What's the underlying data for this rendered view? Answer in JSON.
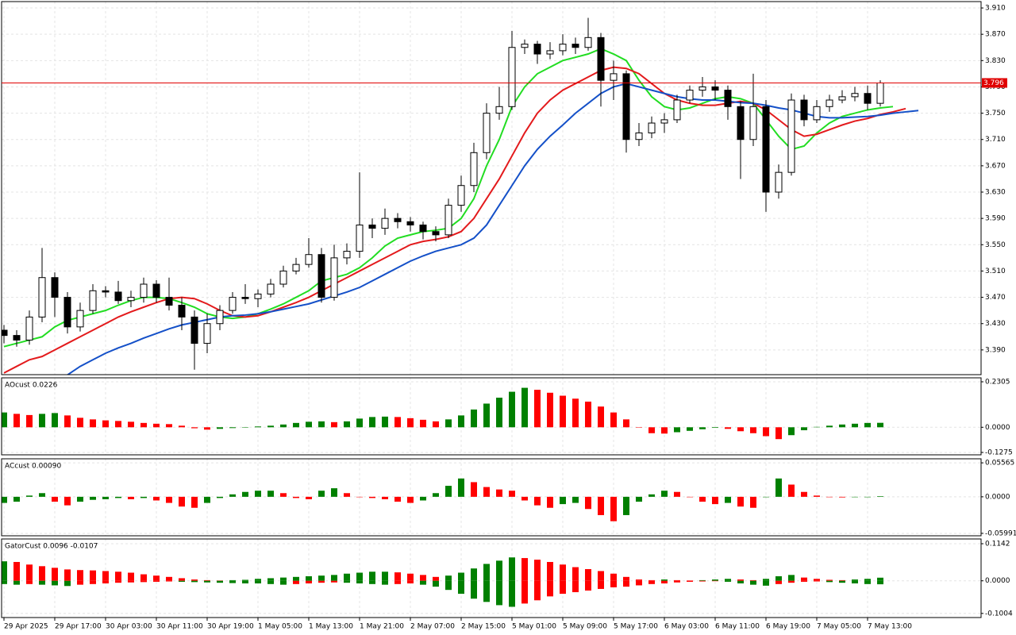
{
  "chart_data": [
    {
      "type": "candlestick",
      "categories": [
        "29 Apr 2025",
        null,
        null,
        null,
        "29 Apr 17:00",
        null,
        null,
        null,
        "30 Apr 03:00",
        null,
        null,
        null,
        "30 Apr 11:00",
        null,
        null,
        null,
        "30 Apr 19:00",
        null,
        null,
        null,
        "1 May 05:00",
        null,
        null,
        null,
        "1 May 13:00",
        null,
        null,
        null,
        "1 May 21:00",
        null,
        null,
        null,
        "2 May 07:00",
        null,
        null,
        null,
        "2 May 15:00",
        null,
        null,
        null,
        "5 May 01:00",
        null,
        null,
        null,
        "5 May 09:00",
        null,
        null,
        null,
        "5 May 17:00",
        null,
        null,
        null,
        "6 May 03:00",
        null,
        null,
        null,
        "6 May 11:00",
        null,
        null,
        null,
        "6 May 19:00",
        null,
        null,
        null,
        "7 May 05:00",
        null,
        null,
        null,
        "7 May 13:00",
        null,
        null,
        null,
        null
      ],
      "open": [
        3.42,
        3.412,
        3.405,
        3.44,
        3.5,
        3.47,
        3.425,
        3.45,
        3.48,
        3.478,
        3.465,
        3.47,
        3.49,
        3.47,
        3.458,
        3.44,
        3.4,
        3.43,
        3.45,
        3.47,
        3.468,
        3.475,
        3.49,
        3.51,
        3.52,
        3.535,
        3.47,
        3.53,
        3.54,
        3.58,
        3.575,
        3.59,
        3.585,
        3.58,
        3.57,
        3.565,
        3.61,
        3.64,
        3.69,
        3.75,
        3.76,
        3.85,
        3.855,
        3.84,
        3.845,
        3.855,
        3.85,
        3.865,
        3.8,
        3.81,
        3.71,
        3.72,
        3.735,
        3.74,
        3.77,
        3.785,
        3.79,
        3.785,
        3.76,
        3.71,
        3.76,
        3.63,
        3.66,
        3.77,
        3.74,
        3.76,
        3.77,
        3.775,
        3.78,
        3.765,
        null,
        null,
        null
      ],
      "high": [
        3.428,
        3.42,
        3.45,
        3.545,
        3.508,
        3.478,
        3.462,
        3.49,
        3.487,
        3.495,
        3.48,
        3.5,
        3.496,
        3.5,
        3.47,
        3.45,
        3.445,
        3.458,
        3.478,
        3.49,
        3.482,
        3.498,
        3.518,
        3.53,
        3.56,
        3.545,
        3.55,
        3.552,
        3.66,
        3.59,
        3.605,
        3.598,
        3.592,
        3.585,
        3.578,
        3.62,
        3.655,
        3.705,
        3.765,
        3.79,
        3.875,
        3.862,
        3.86,
        3.858,
        3.87,
        3.865,
        3.895,
        3.872,
        3.83,
        3.815,
        3.735,
        3.745,
        3.75,
        3.778,
        3.792,
        3.805,
        3.8,
        3.792,
        3.768,
        3.81,
        3.77,
        3.672,
        3.78,
        3.778,
        3.77,
        3.778,
        3.785,
        3.79,
        3.792,
        3.8,
        null,
        null,
        null
      ],
      "low": [
        3.4,
        3.395,
        3.398,
        3.432,
        3.44,
        3.415,
        3.418,
        3.445,
        3.47,
        3.46,
        3.455,
        3.462,
        3.462,
        3.45,
        3.42,
        3.36,
        3.385,
        3.42,
        3.445,
        3.46,
        3.455,
        3.47,
        3.485,
        3.505,
        3.515,
        3.462,
        3.465,
        3.52,
        3.53,
        3.56,
        3.565,
        3.575,
        3.57,
        3.558,
        3.555,
        3.56,
        3.6,
        3.63,
        3.68,
        3.74,
        3.755,
        3.84,
        3.825,
        3.832,
        3.838,
        3.84,
        3.845,
        3.76,
        3.77,
        3.69,
        3.7,
        3.712,
        3.72,
        3.735,
        3.765,
        3.775,
        3.77,
        3.74,
        3.65,
        3.7,
        3.6,
        3.62,
        3.655,
        3.73,
        3.735,
        3.752,
        3.765,
        3.768,
        3.755,
        3.76,
        null,
        null,
        null
      ],
      "close": [
        3.412,
        3.405,
        3.44,
        3.5,
        3.47,
        3.425,
        3.45,
        3.48,
        3.478,
        3.465,
        3.47,
        3.49,
        3.47,
        3.458,
        3.44,
        3.4,
        3.43,
        3.45,
        3.47,
        3.468,
        3.475,
        3.49,
        3.51,
        3.52,
        3.535,
        3.47,
        3.53,
        3.54,
        3.58,
        3.575,
        3.59,
        3.585,
        3.58,
        3.57,
        3.565,
        3.61,
        3.64,
        3.69,
        3.75,
        3.76,
        3.85,
        3.855,
        3.84,
        3.845,
        3.855,
        3.85,
        3.865,
        3.8,
        3.81,
        3.71,
        3.72,
        3.735,
        3.74,
        3.77,
        3.785,
        3.79,
        3.785,
        3.76,
        3.71,
        3.76,
        3.63,
        3.66,
        3.77,
        3.74,
        3.76,
        3.77,
        3.775,
        3.78,
        3.765,
        3.796,
        null,
        null,
        null
      ],
      "lines": [
        {
          "color": "#22dd22",
          "values": [
            3.395,
            3.4,
            3.405,
            3.41,
            3.425,
            3.435,
            3.44,
            3.445,
            3.45,
            3.458,
            3.465,
            3.47,
            3.47,
            3.468,
            3.462,
            3.455,
            3.445,
            3.44,
            3.438,
            3.44,
            3.445,
            3.452,
            3.46,
            3.47,
            3.48,
            3.495,
            3.5,
            3.505,
            3.515,
            3.53,
            3.548,
            3.56,
            3.565,
            3.57,
            3.572,
            3.575,
            3.59,
            3.62,
            3.67,
            3.71,
            3.76,
            3.79,
            3.81,
            3.82,
            3.83,
            3.835,
            3.84,
            3.848,
            3.84,
            3.83,
            3.8,
            3.775,
            3.76,
            3.755,
            3.758,
            3.765,
            3.772,
            3.775,
            3.772,
            3.765,
            3.74,
            3.715,
            3.695,
            3.7,
            3.72,
            3.735,
            3.745,
            3.75,
            3.755,
            3.758,
            3.76,
            null,
            null
          ]
        },
        {
          "color": "#e31a1c",
          "values": [
            3.355,
            3.365,
            3.375,
            3.38,
            3.39,
            3.4,
            3.41,
            3.42,
            3.43,
            3.44,
            3.448,
            3.455,
            3.462,
            3.468,
            3.47,
            3.468,
            3.46,
            3.45,
            3.442,
            3.44,
            3.442,
            3.448,
            3.455,
            3.462,
            3.47,
            3.48,
            3.49,
            3.5,
            3.51,
            3.52,
            3.53,
            3.54,
            3.55,
            3.555,
            3.558,
            3.562,
            3.57,
            3.59,
            3.62,
            3.65,
            3.685,
            3.72,
            3.75,
            3.77,
            3.785,
            3.795,
            3.805,
            3.815,
            3.82,
            3.818,
            3.81,
            3.795,
            3.78,
            3.77,
            3.765,
            3.762,
            3.762,
            3.765,
            3.768,
            3.765,
            3.755,
            3.74,
            3.725,
            3.715,
            3.718,
            3.725,
            3.732,
            3.738,
            3.742,
            3.748,
            3.752,
            3.757,
            null
          ]
        },
        {
          "color": "#1450c8",
          "values": [
            null,
            null,
            null,
            null,
            null,
            3.352,
            3.365,
            3.375,
            3.385,
            3.393,
            3.4,
            3.408,
            3.415,
            3.422,
            3.428,
            3.432,
            3.436,
            3.44,
            3.442,
            3.443,
            3.445,
            3.448,
            3.452,
            3.456,
            3.46,
            3.466,
            3.472,
            3.478,
            3.485,
            3.495,
            3.505,
            3.515,
            3.525,
            3.533,
            3.54,
            3.545,
            3.55,
            3.56,
            3.58,
            3.61,
            3.64,
            3.67,
            3.695,
            3.715,
            3.732,
            3.75,
            3.765,
            3.78,
            3.79,
            3.795,
            3.79,
            3.785,
            3.78,
            3.775,
            3.772,
            3.77,
            3.77,
            3.768,
            3.766,
            3.765,
            3.762,
            3.758,
            3.755,
            3.75,
            3.745,
            3.743,
            3.743,
            3.744,
            3.745,
            3.747,
            3.75,
            3.752,
            3.754
          ]
        }
      ],
      "price_line": {
        "value": 3.796,
        "color": "#e00000"
      },
      "ylim": [
        3.3524,
        3.9197
      ],
      "yticks": [
        {
          "value": 3.91,
          "label": "3.910"
        },
        {
          "value": 3.87,
          "label": "3.870"
        },
        {
          "value": 3.83,
          "label": "3.830"
        },
        {
          "value": 3.79,
          "label": "3.790"
        },
        {
          "value": 3.75,
          "label": "3.750"
        },
        {
          "value": 3.71,
          "label": "3.710"
        },
        {
          "value": 3.67,
          "label": "3.670"
        },
        {
          "value": 3.63,
          "label": "3.630"
        },
        {
          "value": 3.59,
          "label": "3.590"
        },
        {
          "value": 3.55,
          "label": "3.550"
        },
        {
          "value": 3.51,
          "label": "3.510"
        },
        {
          "value": 3.47,
          "label": "3.470"
        },
        {
          "value": 3.43,
          "label": "3.430"
        },
        {
          "value": 3.39,
          "label": "3.390"
        }
      ],
      "grid": true
    },
    {
      "type": "oscillator",
      "title": "AOcust 0.0226",
      "up_color": "#008000",
      "down_color": "#ff0000",
      "series": [
        {
          "values": [
            0.075,
            0.068,
            0.062,
            0.068,
            0.072,
            0.06,
            0.048,
            0.04,
            0.035,
            0.032,
            0.028,
            0.022,
            0.018,
            0.016,
            0.008,
            -0.005,
            -0.012,
            -0.008,
            -0.004,
            0.0,
            0.004,
            0.008,
            0.014,
            0.022,
            0.028,
            0.03,
            0.026,
            0.03,
            0.044,
            0.052,
            0.054,
            0.052,
            0.046,
            0.038,
            0.03,
            0.04,
            0.06,
            0.09,
            0.12,
            0.15,
            0.18,
            0.2,
            0.19,
            0.175,
            0.16,
            0.145,
            0.13,
            0.105,
            0.075,
            0.04,
            0.0,
            -0.03,
            -0.032,
            -0.025,
            -0.018,
            -0.01,
            -0.003,
            -0.008,
            -0.02,
            -0.03,
            -0.045,
            -0.06,
            -0.04,
            -0.015,
            0.002,
            0.008,
            0.014,
            0.018,
            0.022,
            0.0226
          ]
        }
      ],
      "ylim": [
        -0.1396,
        0.2506
      ],
      "yticks": [
        0.2305,
        {
          "value": 0,
          "label": "0.0000"
        },
        -0.1275
      ],
      "grid": true
    },
    {
      "type": "oscillator",
      "title": "ACcust 0.00090",
      "up_color": "#008000",
      "down_color": "#ff0000",
      "series": [
        {
          "values": [
            -0.01,
            -0.008,
            0.002,
            0.006,
            -0.008,
            -0.014,
            -0.008,
            -0.005,
            -0.004,
            -0.002,
            -0.004,
            -0.002,
            -0.006,
            -0.01,
            -0.016,
            -0.018,
            -0.01,
            -0.002,
            0.004,
            0.008,
            0.01,
            0.01,
            0.006,
            -0.002,
            -0.004,
            0.01,
            0.014,
            0.006,
            0.0,
            -0.002,
            -0.004,
            -0.008,
            -0.01,
            -0.006,
            0.006,
            0.018,
            0.03,
            0.024,
            0.016,
            0.012,
            0.01,
            -0.006,
            -0.014,
            -0.018,
            -0.012,
            -0.01,
            -0.02,
            -0.03,
            -0.04,
            -0.03,
            -0.008,
            0.004,
            0.01,
            0.008,
            0.0,
            -0.008,
            -0.012,
            -0.01,
            -0.016,
            -0.018,
            0.0,
            0.03,
            0.02,
            0.008,
            0.002,
            0.0,
            -0.001,
            0.0,
            0.0,
            0.0009
          ]
        }
      ],
      "ylim": [
        -0.06389,
        0.06229
      ],
      "yticks": [
        0.05565,
        {
          "value": 0,
          "label": "0.0000"
        },
        -0.05991
      ],
      "grid": true
    },
    {
      "type": "gator",
      "title": "GatorCust 0.0096 -0.0107",
      "up_color": "#008000",
      "down_color": "#ff0000",
      "series": [
        {
          "values": [
            0.06,
            0.058,
            0.05,
            0.045,
            0.04,
            0.035,
            0.033,
            0.032,
            0.03,
            0.028,
            0.025,
            0.02,
            0.016,
            0.012,
            0.008,
            0.004,
            0.002,
            0.001,
            0.002,
            0.003,
            0.006,
            0.008,
            0.01,
            0.012,
            0.014,
            0.016,
            0.018,
            0.022,
            0.025,
            0.028,
            0.028,
            0.026,
            0.022,
            0.018,
            0.012,
            0.016,
            0.025,
            0.038,
            0.052,
            0.062,
            0.072,
            0.07,
            0.065,
            0.058,
            0.05,
            0.042,
            0.036,
            0.03,
            0.022,
            0.012,
            0.004,
            0.002,
            0.004,
            0.002,
            0.001,
            0.002,
            0.004,
            0.006,
            0.004,
            0.002,
            0.006,
            0.014,
            0.018,
            0.01,
            0.006,
            0.003,
            0.002,
            0.004,
            0.006,
            0.0096
          ]
        },
        {
          "values": [
            -0.01,
            -0.012,
            -0.01,
            -0.012,
            -0.014,
            -0.016,
            -0.012,
            -0.01,
            -0.008,
            -0.006,
            -0.005,
            -0.004,
            -0.003,
            -0.002,
            -0.003,
            -0.004,
            -0.005,
            -0.006,
            -0.007,
            -0.008,
            -0.008,
            -0.01,
            -0.012,
            -0.01,
            -0.008,
            -0.006,
            -0.005,
            -0.006,
            -0.008,
            -0.01,
            -0.012,
            -0.01,
            -0.008,
            -0.012,
            -0.018,
            -0.028,
            -0.04,
            -0.055,
            -0.065,
            -0.075,
            -0.08,
            -0.07,
            -0.06,
            -0.048,
            -0.04,
            -0.035,
            -0.03,
            -0.025,
            -0.02,
            -0.018,
            -0.014,
            -0.01,
            -0.008,
            -0.005,
            -0.003,
            -0.002,
            -0.001,
            -0.003,
            -0.008,
            -0.012,
            -0.015,
            -0.01,
            -0.006,
            -0.003,
            -0.002,
            -0.004,
            -0.006,
            -0.008,
            -0.01,
            -0.0107
          ]
        }
      ],
      "ylim": [
        -0.11308,
        0.12883
      ],
      "yticks": [
        0.1142,
        {
          "value": 0,
          "label": "0.0000"
        },
        -0.1004
      ],
      "grid": true
    }
  ]
}
